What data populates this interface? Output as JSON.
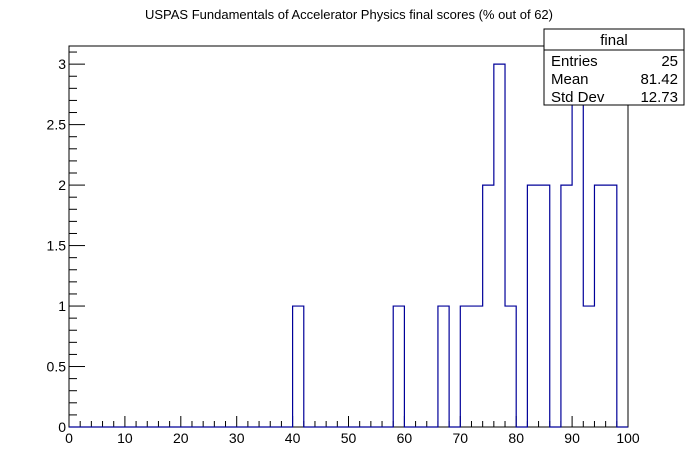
{
  "chart_data": {
    "type": "bar",
    "title": "USPAS Fundamentals of Accelerator Physics final scores (% out of 62)",
    "xlabel": "",
    "ylabel": "",
    "xlim": [
      0,
      100
    ],
    "ylim": [
      0,
      3.15
    ],
    "bin_width": 2,
    "bins": [
      {
        "x": 40,
        "value": 1
      },
      {
        "x": 58,
        "value": 1
      },
      {
        "x": 66,
        "value": 1
      },
      {
        "x": 70,
        "value": 1
      },
      {
        "x": 72,
        "value": 1
      },
      {
        "x": 74,
        "value": 2
      },
      {
        "x": 76,
        "value": 3
      },
      {
        "x": 78,
        "value": 1
      },
      {
        "x": 82,
        "value": 2
      },
      {
        "x": 84,
        "value": 2
      },
      {
        "x": 88,
        "value": 2
      },
      {
        "x": 90,
        "value": 3
      },
      {
        "x": 92,
        "value": 1
      },
      {
        "x": 94,
        "value": 2
      },
      {
        "x": 96,
        "value": 2
      }
    ],
    "x_ticks": [
      "0",
      "10",
      "20",
      "30",
      "40",
      "50",
      "60",
      "70",
      "80",
      "90",
      "100"
    ],
    "y_ticks": [
      "0",
      "0.5",
      "1",
      "1.5",
      "2",
      "2.5",
      "3"
    ],
    "line_color": "#000099",
    "grid": false,
    "legend_position": "top-right",
    "stats": {
      "name": "final",
      "rows": [
        {
          "label": "Entries",
          "value": "25"
        },
        {
          "label": "Mean",
          "value": "81.42"
        },
        {
          "label": "Std Dev",
          "value": "12.73"
        }
      ]
    }
  }
}
